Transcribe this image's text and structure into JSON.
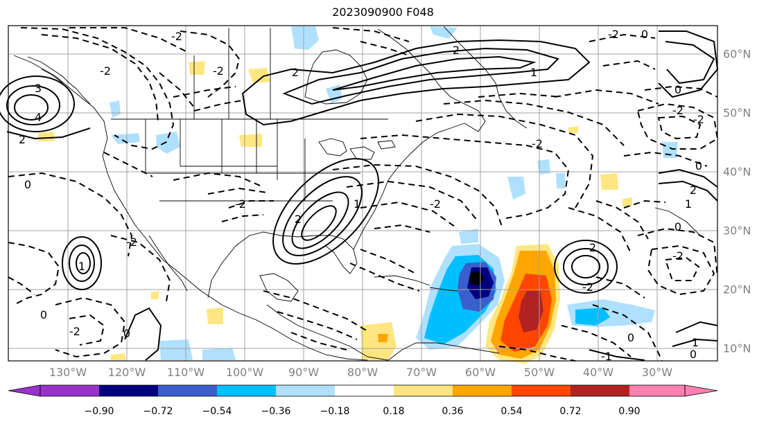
{
  "title": "2023090900 F048",
  "map": {
    "longitude_labels": [
      "130°W",
      "120°W",
      "110°W",
      "100°W",
      "90°W",
      "80°W",
      "70°W",
      "60°W",
      "50°W",
      "40°W",
      "30°W"
    ],
    "latitude_labels": [
      "60°N",
      "50°N",
      "40°N",
      "30°N",
      "20°N",
      "10°N"
    ],
    "contour_labels": [
      "2",
      "-2",
      "3",
      "4",
      "1",
      "0",
      "-1"
    ],
    "colors": {
      "land_outline": "#000000",
      "gridline": "#a0a0a0",
      "tick_label": "#7f7f7f"
    }
  },
  "colorbar": {
    "tick_labels": [
      "−0.90",
      "−0.72",
      "−0.54",
      "−0.36",
      "−0.18",
      "0.18",
      "0.36",
      "0.54",
      "0.72",
      "0.90"
    ],
    "colors": [
      "#9932cc",
      "#000080",
      "#3a5fcd",
      "#00bfff",
      "#b0e0ff",
      "#ffffff",
      "#ffe680",
      "#ffa500",
      "#ff4500",
      "#b22222",
      "#ff80b0"
    ],
    "extend": "both"
  }
}
